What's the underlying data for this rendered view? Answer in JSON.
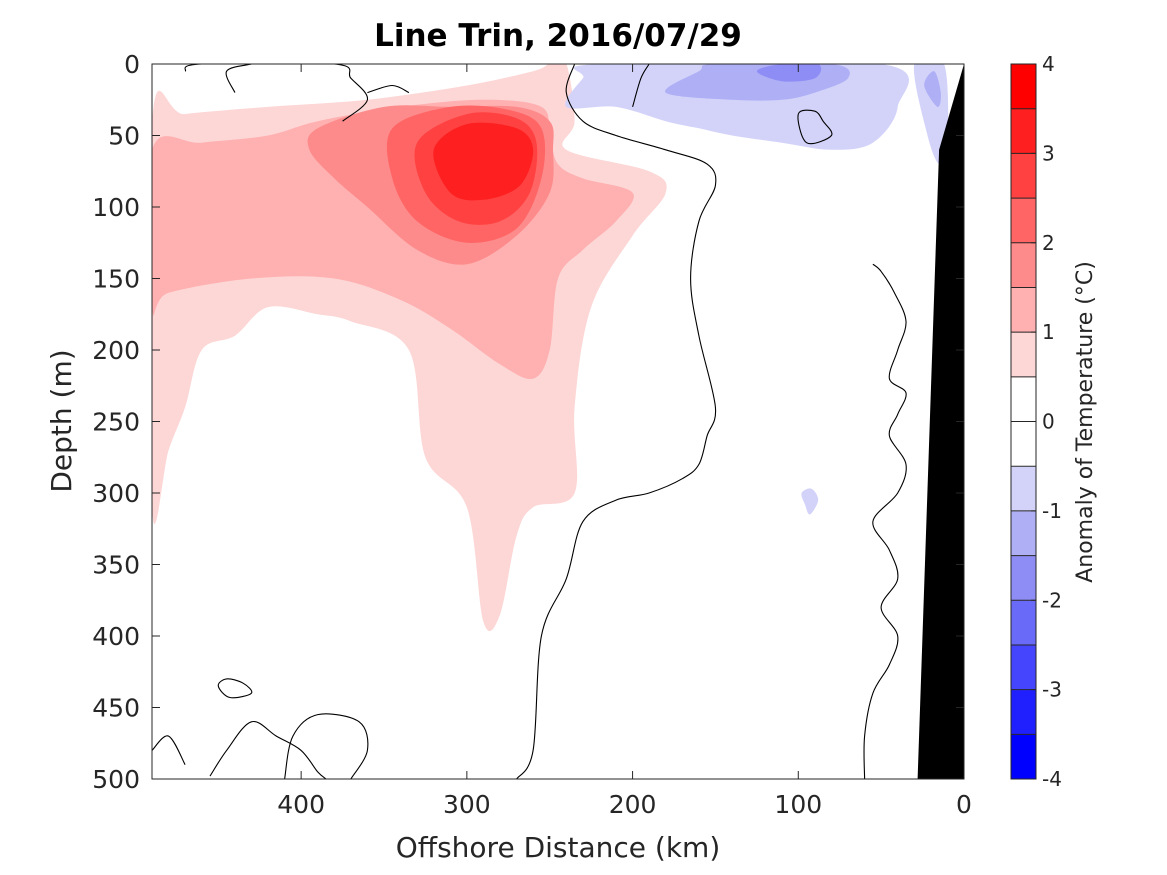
{
  "chart_data": {
    "type": "contour",
    "title": "Line Trin, 2016/07/29",
    "xlabel": "Offshore Distance (km)",
    "ylabel": "Depth (m)",
    "xlim": [
      490,
      0
    ],
    "ylim": [
      500,
      0
    ],
    "x_ticks": [
      400,
      300,
      200,
      100,
      0
    ],
    "x_tick_labels": [
      "400",
      "300",
      "200",
      "100",
      "0"
    ],
    "y_ticks": [
      0,
      50,
      100,
      150,
      200,
      250,
      300,
      350,
      400,
      450,
      500
    ],
    "y_tick_labels": [
      "0",
      "50",
      "100",
      "150",
      "200",
      "250",
      "300",
      "350",
      "400",
      "450",
      "500"
    ],
    "colorbar": {
      "label": "Anomaly of Temperature (°C)",
      "range": [
        -4,
        4
      ],
      "step": 0.5,
      "ticks": [
        4,
        3,
        2,
        1,
        0,
        -1,
        -2,
        -3,
        -4
      ],
      "tick_labels": [
        "4",
        "3",
        "2",
        "1",
        "0",
        "-1",
        "-2",
        "-3",
        "-4"
      ],
      "colors": [
        "#0000ff",
        "#2020ff",
        "#4545fe",
        "#6a6af8",
        "#8d8df5",
        "#afaff6",
        "#d3d3fa",
        "#ffffff",
        "#ffffff",
        "#fdd6d6",
        "#ffb0b0",
        "#fd8b8b",
        "#ff6565",
        "#ff4141",
        "#fe2020",
        "#ff0000"
      ]
    },
    "filled_regions": [
      {
        "level": 0.5,
        "color": "#fdd6d6",
        "points": [
          [
            490,
            40
          ],
          [
            470,
            35
          ],
          [
            420,
            30
          ],
          [
            360,
            25
          ],
          [
            300,
            15
          ],
          [
            260,
            5
          ],
          [
            250,
            0
          ],
          [
            240,
            0
          ],
          [
            235,
            40
          ],
          [
            240,
            60
          ],
          [
            190,
            75
          ],
          [
            180,
            90
          ],
          [
            200,
            120
          ],
          [
            225,
            170
          ],
          [
            235,
            240
          ],
          [
            235,
            300
          ],
          [
            260,
            310
          ],
          [
            270,
            330
          ],
          [
            280,
            385
          ],
          [
            290,
            390
          ],
          [
            300,
            310
          ],
          [
            325,
            275
          ],
          [
            335,
            200
          ],
          [
            370,
            180
          ],
          [
            390,
            175
          ],
          [
            420,
            170
          ],
          [
            440,
            190
          ],
          [
            460,
            200
          ],
          [
            470,
            240
          ],
          [
            480,
            270
          ],
          [
            490,
            310
          ]
        ]
      },
      {
        "level": 1.0,
        "color": "#ffb0b0",
        "points": [
          [
            490,
            60
          ],
          [
            460,
            55
          ],
          [
            420,
            50
          ],
          [
            390,
            40
          ],
          [
            340,
            30
          ],
          [
            290,
            25
          ],
          [
            255,
            30
          ],
          [
            250,
            50
          ],
          [
            245,
            70
          ],
          [
            230,
            80
          ],
          [
            200,
            90
          ],
          [
            210,
            110
          ],
          [
            230,
            130
          ],
          [
            245,
            150
          ],
          [
            250,
            200
          ],
          [
            260,
            220
          ],
          [
            280,
            210
          ],
          [
            310,
            185
          ],
          [
            340,
            165
          ],
          [
            380,
            150
          ],
          [
            430,
            150
          ],
          [
            480,
            160
          ],
          [
            490,
            170
          ]
        ]
      },
      {
        "level": 1.5,
        "color": "#fd8b8b",
        "points": [
          [
            390,
            45
          ],
          [
            350,
            30
          ],
          [
            310,
            30
          ],
          [
            270,
            30
          ],
          [
            250,
            40
          ],
          [
            248,
            60
          ],
          [
            250,
            90
          ],
          [
            270,
            120
          ],
          [
            300,
            140
          ],
          [
            330,
            130
          ],
          [
            360,
            100
          ],
          [
            380,
            80
          ],
          [
            395,
            60
          ]
        ]
      },
      {
        "level": 2.0,
        "color": "#ff6565",
        "points": [
          [
            345,
            45
          ],
          [
            310,
            30
          ],
          [
            275,
            32
          ],
          [
            255,
            45
          ],
          [
            255,
            80
          ],
          [
            270,
            115
          ],
          [
            300,
            125
          ],
          [
            330,
            110
          ],
          [
            345,
            80
          ]
        ]
      },
      {
        "level": 2.5,
        "color": "#ff4141",
        "points": [
          [
            330,
            55
          ],
          [
            300,
            35
          ],
          [
            270,
            38
          ],
          [
            258,
            55
          ],
          [
            262,
            90
          ],
          [
            280,
            110
          ],
          [
            305,
            110
          ],
          [
            325,
            90
          ]
        ]
      },
      {
        "level": 3.0,
        "color": "#fe2020",
        "points": [
          [
            320,
            60
          ],
          [
            300,
            42
          ],
          [
            270,
            45
          ],
          [
            260,
            60
          ],
          [
            268,
            85
          ],
          [
            290,
            95
          ],
          [
            310,
            90
          ]
        ]
      },
      {
        "level": -0.5,
        "color": "#d3d3fa",
        "points": [
          [
            240,
            30
          ],
          [
            230,
            10
          ],
          [
            220,
            0
          ],
          [
            50,
            0
          ],
          [
            40,
            30
          ],
          [
            55,
            55
          ],
          [
            80,
            60
          ],
          [
            110,
            55
          ],
          [
            140,
            50
          ],
          [
            160,
            45
          ],
          [
            180,
            40
          ],
          [
            210,
            30
          ]
        ]
      },
      {
        "level": -1.0,
        "color": "#afaff6",
        "points": [
          [
            180,
            20
          ],
          [
            160,
            5
          ],
          [
            150,
            0
          ],
          [
            80,
            0
          ],
          [
            70,
            10
          ],
          [
            90,
            20
          ],
          [
            110,
            25
          ],
          [
            140,
            25
          ]
        ]
      },
      {
        "level": -1.5,
        "color": "#8d8df5",
        "points": [
          [
            125,
            5
          ],
          [
            110,
            0
          ],
          [
            88,
            0
          ],
          [
            90,
            10
          ],
          [
            110,
            12
          ]
        ]
      },
      {
        "level": -0.5,
        "color": "#d3d3fa",
        "points": [
          [
            30,
            0
          ],
          [
            12,
            0
          ],
          [
            10,
            60
          ],
          [
            15,
            70
          ],
          [
            22,
            50
          ]
        ]
      },
      {
        "level": -1.0,
        "color": "#afaff6",
        "points": [
          [
            24,
            15
          ],
          [
            18,
            5
          ],
          [
            14,
            20
          ],
          [
            16,
            30
          ]
        ]
      },
      {
        "level": -0.5,
        "color": "#d3d3fa",
        "points": [
          [
            98,
            300
          ],
          [
            92,
            297
          ],
          [
            88,
            305
          ],
          [
            93,
            315
          ],
          [
            96,
            308
          ]
        ]
      }
    ],
    "zero_contours": [
      [
        [
          235,
          0
        ],
        [
          240,
          20
        ],
        [
          230,
          40
        ],
        [
          210,
          50
        ],
        [
          180,
          60
        ],
        [
          155,
          70
        ],
        [
          150,
          85
        ],
        [
          160,
          110
        ],
        [
          165,
          150
        ],
        [
          160,
          190
        ],
        [
          150,
          240
        ],
        [
          155,
          260
        ],
        [
          160,
          280
        ],
        [
          170,
          290
        ],
        [
          190,
          300
        ],
        [
          210,
          305
        ],
        [
          230,
          320
        ],
        [
          240,
          360
        ],
        [
          255,
          400
        ],
        [
          260,
          480
        ],
        [
          270,
          500
        ]
      ],
      [
        [
          490,
          480
        ],
        [
          480,
          470
        ],
        [
          470,
          490
        ]
      ],
      [
        [
          455,
          498
        ],
        [
          445,
          480
        ],
        [
          430,
          460
        ],
        [
          415,
          470
        ],
        [
          400,
          480
        ],
        [
          390,
          495
        ],
        [
          385,
          500
        ]
      ],
      [
        [
          435,
          433
        ],
        [
          445,
          430
        ],
        [
          450,
          435
        ],
        [
          443,
          443
        ],
        [
          430,
          440
        ]
      ],
      [
        [
          410,
          500
        ],
        [
          405,
          470
        ],
        [
          390,
          455
        ],
        [
          365,
          460
        ],
        [
          360,
          480
        ],
        [
          370,
          500
        ]
      ],
      [
        [
          60,
          500
        ],
        [
          60,
          470
        ],
        [
          55,
          440
        ],
        [
          45,
          420
        ],
        [
          40,
          400
        ],
        [
          50,
          380
        ],
        [
          40,
          360
        ],
        [
          45,
          340
        ],
        [
          55,
          320
        ],
        [
          40,
          300
        ],
        [
          35,
          280
        ],
        [
          45,
          260
        ],
        [
          40,
          245
        ],
        [
          35,
          230
        ],
        [
          45,
          220
        ],
        [
          40,
          200
        ],
        [
          35,
          180
        ],
        [
          42,
          160
        ],
        [
          50,
          145
        ],
        [
          55,
          140
        ]
      ],
      [
        [
          200,
          30
        ],
        [
          195,
          10
        ],
        [
          190,
          0
        ]
      ],
      [
        [
          470,
          5
        ],
        [
          460,
          0
        ],
        [
          380,
          0
        ],
        [
          370,
          10
        ],
        [
          360,
          25
        ],
        [
          375,
          40
        ]
      ],
      [
        [
          440,
          20
        ],
        [
          445,
          5
        ],
        [
          430,
          0
        ]
      ],
      [
        [
          360,
          20
        ],
        [
          345,
          15
        ],
        [
          335,
          20
        ]
      ],
      [
        [
          85,
          40
        ],
        [
          80,
          50
        ],
        [
          95,
          55
        ],
        [
          100,
          35
        ],
        [
          90,
          33
        ]
      ]
    ],
    "land_mask": [
      [
        0,
        0
      ],
      [
        0,
        500
      ],
      [
        28,
        500
      ],
      [
        15,
        60
      ],
      [
        0,
        0
      ]
    ]
  }
}
